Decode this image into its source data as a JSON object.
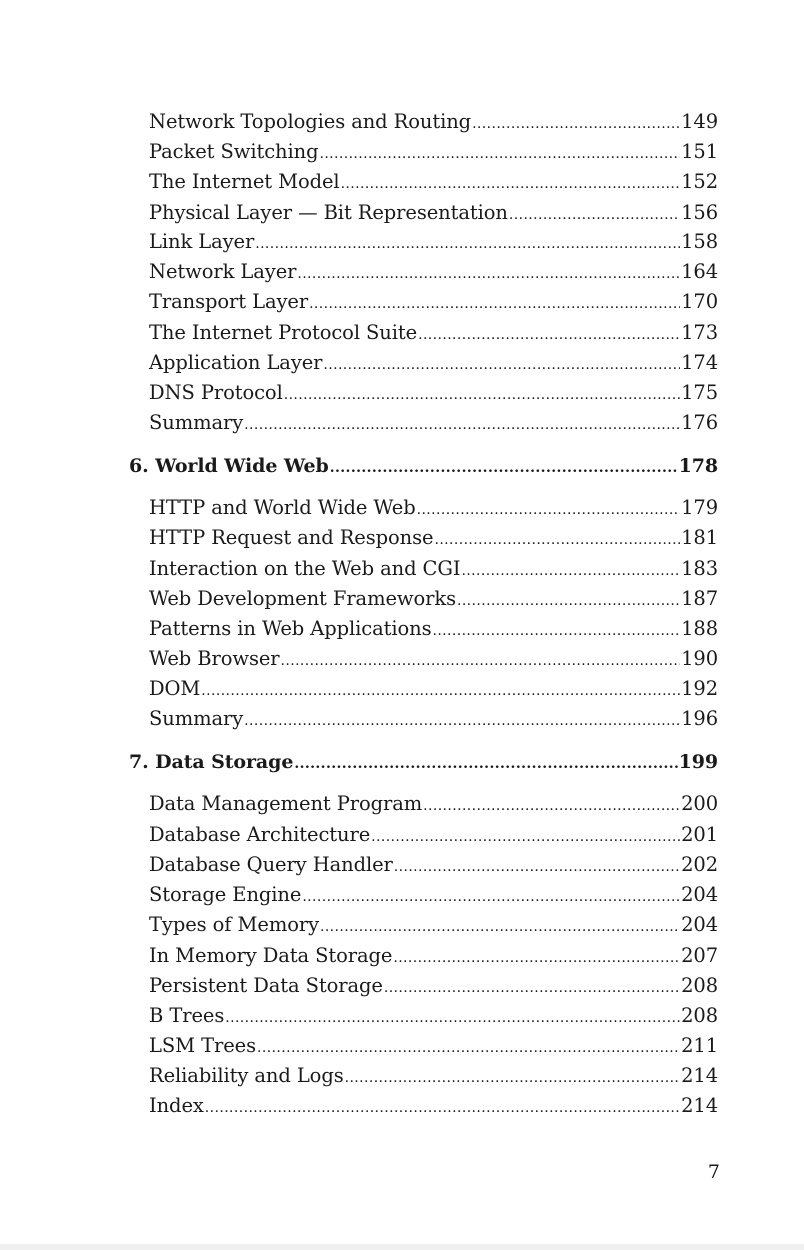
{
  "toc": {
    "items": [
      {
        "kind": "section",
        "title": "Network Topologies and Routing",
        "page": "149"
      },
      {
        "kind": "section",
        "title": "Packet Switching",
        "page": "151"
      },
      {
        "kind": "section",
        "title": "The Internet Model",
        "page": "152"
      },
      {
        "kind": "section",
        "title": "Physical Layer — Bit Representation",
        "page": "156"
      },
      {
        "kind": "section",
        "title": "Link Layer",
        "page": "158"
      },
      {
        "kind": "section",
        "title": "Network Layer",
        "page": "164"
      },
      {
        "kind": "section",
        "title": "Transport Layer",
        "page": "170"
      },
      {
        "kind": "section",
        "title": "The Internet Protocol Suite",
        "page": "173"
      },
      {
        "kind": "section",
        "title": "Application Layer",
        "page": "174"
      },
      {
        "kind": "section",
        "title": "DNS Protocol",
        "page": "175"
      },
      {
        "kind": "section",
        "title": "Summary",
        "page": "176"
      },
      {
        "kind": "chapter",
        "title": "6.  World Wide Web",
        "page": "178"
      },
      {
        "kind": "section",
        "title": "HTTP and World Wide Web",
        "page": "179"
      },
      {
        "kind": "section",
        "title": "HTTP Request and Response",
        "page": "181"
      },
      {
        "kind": "section",
        "title": "Interaction on the Web and CGI",
        "page": "183"
      },
      {
        "kind": "section",
        "title": "Web Development Frameworks",
        "page": "187"
      },
      {
        "kind": "section",
        "title": "Patterns in Web Applications",
        "page": "188"
      },
      {
        "kind": "section",
        "title": "Web Browser",
        "page": "190"
      },
      {
        "kind": "section",
        "title": "DOM",
        "page": "192"
      },
      {
        "kind": "section",
        "title": "Summary",
        "page": "196"
      },
      {
        "kind": "chapter",
        "title": "7. Data Storage",
        "page": "199"
      },
      {
        "kind": "section",
        "title": "Data Management Program",
        "page": "200"
      },
      {
        "kind": "section",
        "title": "Database Architecture",
        "page": "201"
      },
      {
        "kind": "section",
        "title": "Database Query Handler",
        "page": "202"
      },
      {
        "kind": "section",
        "title": "Storage Engine",
        "page": "204"
      },
      {
        "kind": "section",
        "title": "Types of Memory",
        "page": "204"
      },
      {
        "kind": "section",
        "title": "In Memory Data Storage",
        "page": "207"
      },
      {
        "kind": "section",
        "title": "Persistent Data Storage",
        "page": "208"
      },
      {
        "kind": "section",
        "title": "B Trees",
        "page": "208"
      },
      {
        "kind": "section",
        "title": "LSM Trees",
        "page": "211"
      },
      {
        "kind": "section",
        "title": "Reliability and Logs",
        "page": "214"
      },
      {
        "kind": "section",
        "title": "Index",
        "page": "214"
      }
    ]
  },
  "footer": {
    "page_number": "7"
  }
}
